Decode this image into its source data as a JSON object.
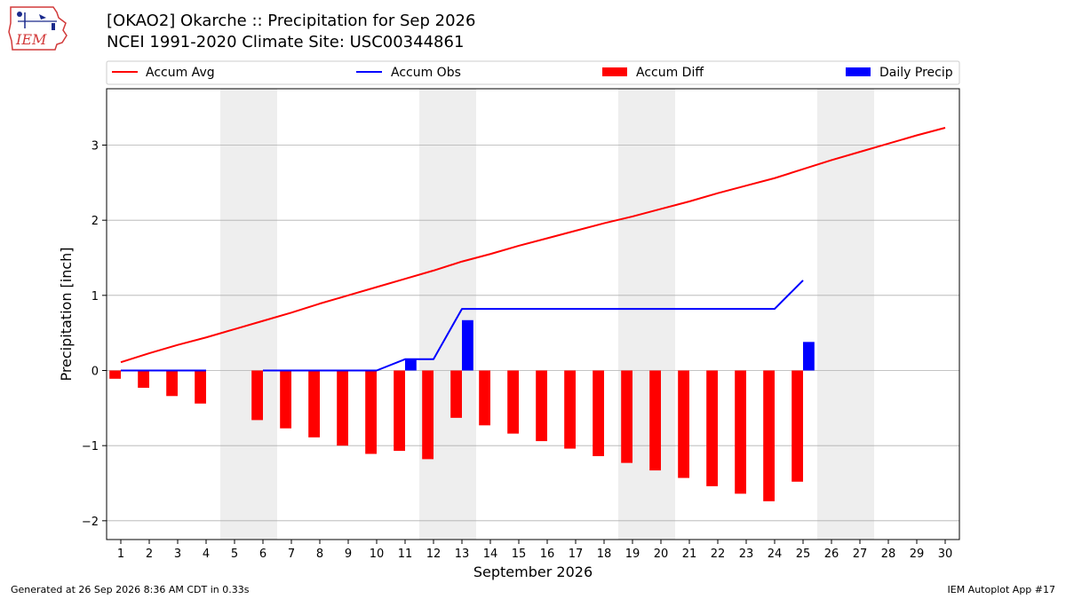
{
  "header": {
    "title": "[OKAO2] Okarche :: Precipitation for Sep 2026",
    "subtitle": "NCEI 1991-2020 Climate Site: USC00344861",
    "logo_text": "IEM"
  },
  "footer": {
    "left": "Generated at 26 Sep 2026 8:36 AM CDT in 0.33s",
    "right": "IEM Autoplot App #17"
  },
  "colors": {
    "accum_avg": "#ff0000",
    "accum_obs": "#0000ff",
    "accum_diff": "#ff0000",
    "daily_precip": "#0000ff",
    "weekend_shade": "#eeeeee",
    "grid": "#b0b0b0"
  },
  "chart_data": {
    "type": "bar",
    "xlabel": "September 2026",
    "ylabel": "Precipitation [inch]",
    "xlim": [
      0.5,
      30.5
    ],
    "ylim": [
      -2.25,
      3.75
    ],
    "yticks": [
      -2,
      -1,
      0,
      1,
      2,
      3
    ],
    "ytick_labels": [
      "−2",
      "−1",
      "0",
      "1",
      "2",
      "3"
    ],
    "grid": "horizontal",
    "legend_placement": "top",
    "days": [
      1,
      2,
      3,
      4,
      5,
      6,
      7,
      8,
      9,
      10,
      11,
      12,
      13,
      14,
      15,
      16,
      17,
      18,
      19,
      20,
      21,
      22,
      23,
      24,
      25,
      26,
      27,
      28,
      29,
      30
    ],
    "weekend_days": [
      5,
      6,
      12,
      13,
      19,
      20,
      26,
      27
    ],
    "series": [
      {
        "name": "Accum Avg",
        "type": "line",
        "x": [
          1,
          2,
          3,
          4,
          5,
          6,
          7,
          8,
          9,
          10,
          11,
          12,
          13,
          14,
          15,
          16,
          17,
          18,
          19,
          20,
          21,
          22,
          23,
          24,
          25,
          26,
          27,
          28,
          29,
          30
        ],
        "values": [
          0.11,
          0.23,
          0.34,
          0.44,
          0.55,
          0.66,
          0.77,
          0.89,
          1.0,
          1.11,
          1.22,
          1.33,
          1.45,
          1.55,
          1.66,
          1.76,
          1.86,
          1.96,
          2.05,
          2.15,
          2.25,
          2.36,
          2.46,
          2.56,
          2.68,
          2.8,
          2.91,
          3.02,
          3.13,
          3.23
        ]
      },
      {
        "name": "Accum Obs",
        "type": "line",
        "x": [
          1,
          2,
          3,
          4,
          6,
          7,
          8,
          9,
          10,
          11,
          12,
          13,
          14,
          15,
          16,
          17,
          18,
          19,
          20,
          21,
          22,
          23,
          24,
          25
        ],
        "values": [
          0,
          0,
          0,
          0,
          0,
          0,
          0,
          0,
          0,
          0.15,
          0.15,
          0.82,
          0.82,
          0.82,
          0.82,
          0.82,
          0.82,
          0.82,
          0.82,
          0.82,
          0.82,
          0.82,
          0.82,
          1.2
        ]
      },
      {
        "name": "Accum Diff",
        "type": "bar",
        "x": [
          1,
          2,
          3,
          4,
          6,
          7,
          8,
          9,
          10,
          11,
          12,
          13,
          14,
          15,
          16,
          17,
          18,
          19,
          20,
          21,
          22,
          23,
          24,
          25
        ],
        "values": [
          -0.11,
          -0.23,
          -0.34,
          -0.44,
          -0.66,
          -0.77,
          -0.89,
          -1.0,
          -1.11,
          -1.07,
          -1.18,
          -0.63,
          -0.73,
          -0.84,
          -0.94,
          -1.04,
          -1.14,
          -1.23,
          -1.33,
          -1.43,
          -1.54,
          -1.64,
          -1.74,
          -1.48
        ]
      },
      {
        "name": "Daily Precip",
        "type": "bar",
        "x": [
          11,
          13,
          25
        ],
        "values": [
          0.15,
          0.67,
          0.38
        ]
      }
    ]
  }
}
